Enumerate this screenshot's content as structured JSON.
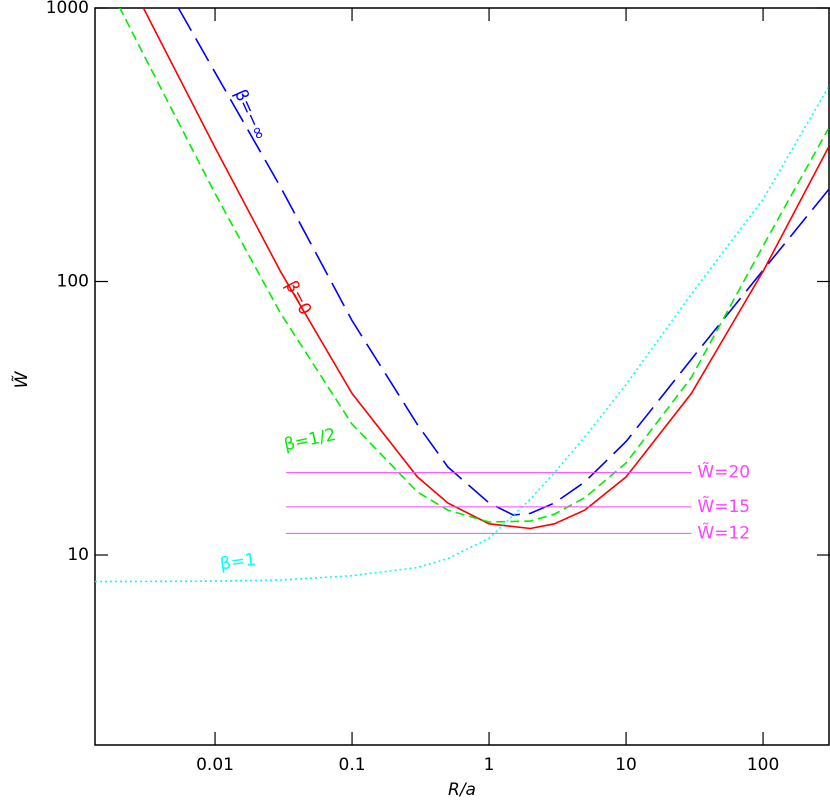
{
  "chart_data": {
    "type": "line",
    "x_label": "R/a",
    "y_label": "W̃",
    "log_x": true,
    "log_y": true,
    "xlim": [
      0.00133,
      308
    ],
    "ylim": [
      2.02,
      1000
    ],
    "xticks": [
      0.01,
      0.1,
      1,
      10,
      100
    ],
    "yticks": [
      10,
      100,
      1000
    ],
    "series": [
      {
        "name": "β=−∞",
        "color": "#0000ff",
        "dash": "long",
        "x": [
          0.0054,
          0.01,
          0.03,
          0.1,
          0.3,
          0.5,
          1,
          1.5,
          2,
          3,
          5,
          10,
          30,
          100,
          308
        ],
        "values": [
          1000,
          582,
          222,
          72,
          30,
          21,
          15.5,
          14,
          14.2,
          15.5,
          18.5,
          26,
          52,
          110,
          220
        ]
      },
      {
        "name": "β=0",
        "color": "#ff0000",
        "dash": "solid",
        "x": [
          0.003,
          0.01,
          0.03,
          0.1,
          0.3,
          0.5,
          1,
          2,
          3,
          5,
          10,
          30,
          100,
          300
        ],
        "values": [
          1000,
          309,
          109,
          39,
          19.3,
          15.5,
          13,
          12.5,
          13,
          14.6,
          19.3,
          39,
          109,
          309
        ]
      },
      {
        "name": "β=1/2",
        "color": "#00ee00",
        "dash": "short",
        "x": [
          0.002,
          0.003,
          0.01,
          0.03,
          0.1,
          0.3,
          0.5,
          1,
          2,
          3,
          5,
          10,
          30,
          100,
          300
        ],
        "values": [
          1010,
          678,
          210,
          76.7,
          30.1,
          17,
          14.6,
          13.2,
          13.3,
          14.1,
          16.2,
          21.7,
          44.6,
          135,
          362
        ]
      },
      {
        "name": "β=1",
        "color": "#00ffff",
        "dash": "dotted",
        "x": [
          0.00133,
          0.01,
          0.03,
          0.1,
          0.3,
          0.5,
          1,
          2,
          3,
          5,
          10,
          30,
          100,
          308
        ],
        "values": [
          8,
          8.02,
          8.1,
          8.4,
          9,
          9.7,
          11.5,
          16,
          20,
          27,
          42,
          90,
          200,
          525
        ]
      }
    ],
    "hlines": [
      {
        "value": 20,
        "label": "W̃=20",
        "x": [
          0.033,
          30
        ],
        "color": "#ff44ff"
      },
      {
        "value": 15,
        "label": "W̃=15",
        "x": [
          0.033,
          30
        ],
        "color": "#ff44ff"
      },
      {
        "value": 12,
        "label": "W̃=12",
        "x": [
          0.033,
          30
        ],
        "color": "#ff44ff"
      }
    ]
  }
}
